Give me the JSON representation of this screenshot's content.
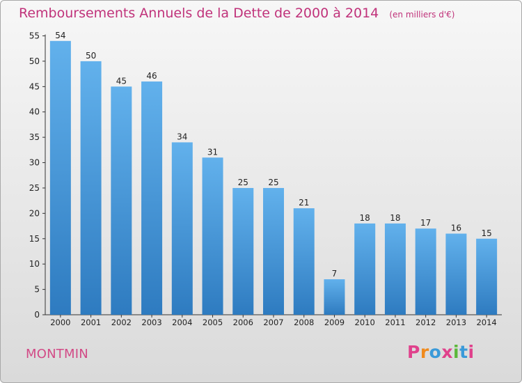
{
  "page": {
    "title": "Remboursements Annuels de la Dette de 2000 à 2014",
    "unit_note": "(en milliers d'€)",
    "location": "MONTMIN",
    "logo": "Proxiti"
  },
  "colors": {
    "title": "#c0327a",
    "bar_light": "#62b1ec",
    "bar_dark": "#2e7bc0",
    "location": "#d24a86",
    "logo_letters": [
      "#e0418c",
      "#f08a1c",
      "#3a9ad9",
      "#e0418c",
      "#5cb83b",
      "#3a9ad9",
      "#e0418c"
    ]
  },
  "chart_data": {
    "type": "bar",
    "title": "Remboursements Annuels de la Dette de 2000 à 2014",
    "categories": [
      "2000",
      "2001",
      "2002",
      "2003",
      "2004",
      "2005",
      "2006",
      "2007",
      "2008",
      "2009",
      "2010",
      "2011",
      "2012",
      "2013",
      "2014"
    ],
    "values": [
      54,
      50,
      45,
      46,
      34,
      31,
      25,
      25,
      21,
      7,
      18,
      18,
      17,
      16,
      15
    ],
    "ylim": [
      0,
      55
    ],
    "yticks": [
      0,
      5,
      10,
      15,
      20,
      25,
      30,
      35,
      40,
      45,
      50,
      55
    ],
    "grid": false,
    "data_labels": true
  }
}
